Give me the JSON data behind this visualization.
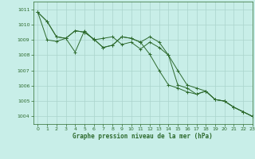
{
  "title": "Graphe pression niveau de la mer (hPa)",
  "bg_color": "#c8eee8",
  "grid_color": "#aad4cc",
  "line_color": "#2d6a2d",
  "xlim": [
    -0.5,
    23
  ],
  "ylim": [
    1003.5,
    1011.5
  ],
  "xticks": [
    0,
    1,
    2,
    3,
    4,
    5,
    6,
    7,
    8,
    9,
    10,
    11,
    12,
    13,
    14,
    15,
    16,
    17,
    18,
    19,
    20,
    21,
    22,
    23
  ],
  "yticks": [
    1004,
    1005,
    1006,
    1007,
    1008,
    1009,
    1010,
    1011
  ],
  "series1_x": [
    0,
    1,
    2,
    3,
    4,
    5,
    6,
    7,
    8,
    9,
    10,
    11,
    12,
    13,
    14,
    15,
    16,
    17,
    18,
    19,
    20,
    21,
    22,
    23
  ],
  "series1_y": [
    1010.8,
    1010.2,
    1009.2,
    1009.1,
    1009.6,
    1009.5,
    1009.05,
    1008.5,
    1008.65,
    1009.2,
    1009.1,
    1008.85,
    1008.05,
    1007.0,
    1006.05,
    1005.85,
    1005.6,
    1005.45,
    1005.65,
    1005.1,
    1005.0,
    1004.6,
    1004.3,
    1004.0
  ],
  "series2_x": [
    0,
    1,
    2,
    3,
    4,
    5,
    6,
    7,
    8,
    9,
    10,
    11,
    12,
    13,
    14,
    15,
    16,
    17,
    18,
    19,
    20,
    21,
    22,
    23
  ],
  "series2_y": [
    1010.8,
    1010.2,
    1009.2,
    1009.1,
    1009.6,
    1009.5,
    1009.05,
    1008.5,
    1008.65,
    1009.2,
    1009.1,
    1008.85,
    1009.2,
    1008.85,
    1008.0,
    1007.0,
    1006.05,
    1005.85,
    1005.65,
    1005.1,
    1005.0,
    1004.6,
    1004.3,
    1004.0
  ],
  "series3_x": [
    0,
    1,
    2,
    3,
    4,
    5,
    6,
    7,
    8,
    9,
    10,
    11,
    12,
    13,
    14,
    15,
    16,
    17,
    18,
    19,
    20,
    21,
    22,
    23
  ],
  "series3_y": [
    1010.8,
    1009.0,
    1008.9,
    1009.1,
    1008.2,
    1009.6,
    1009.0,
    1009.1,
    1009.2,
    1008.7,
    1008.85,
    1008.4,
    1008.85,
    1008.5,
    1008.0,
    1006.05,
    1005.85,
    1005.45,
    1005.65,
    1005.1,
    1005.0,
    1004.6,
    1004.3,
    1004.0
  ]
}
